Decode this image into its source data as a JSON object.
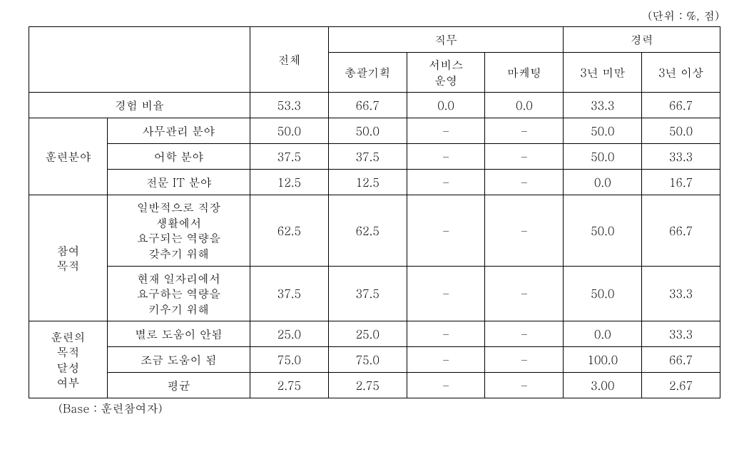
{
  "unit_note": "(단위 : %, 점)",
  "base_note": "(Base : 훈련참여자)",
  "colors": {
    "border": "#000000",
    "text": "#000000",
    "background": "#ffffff"
  },
  "headers": {
    "total": "전체",
    "job_group": "직무",
    "experience_group": "경력",
    "job_sub": [
      "총괄기획",
      "서비스\n운영",
      "마케팅"
    ],
    "exp_sub": [
      "3년 미만",
      "3년 이상"
    ]
  },
  "row_groups": {
    "experience_rate": {
      "label": "경험 비율"
    },
    "training_field": {
      "label": "훈련분야",
      "rows": [
        "사무관리 분야",
        "어학 분야",
        "전문 IT 분야"
      ]
    },
    "purpose": {
      "label": "참여\n목적",
      "rows": [
        "일반적으로 직장\n생활에서\n요구되는 역량을\n갖추기 위해",
        "현재 일자리에서\n요구하는 역량을\n키우기 위해"
      ]
    },
    "achievement": {
      "label": "훈련의\n목적\n달성\n여부",
      "rows": [
        "별로 도움이 안됨",
        "조금 도움이 됨",
        "평균"
      ]
    }
  },
  "cells": {
    "exp_rate": [
      "53.3",
      "66.7",
      "0.0",
      "0.0",
      "33.3",
      "66.7"
    ],
    "tf_office": [
      "50.0",
      "50.0",
      "–",
      "–",
      "50.0",
      "50.0"
    ],
    "tf_lang": [
      "37.5",
      "37.5",
      "–",
      "–",
      "50.0",
      "33.3"
    ],
    "tf_it": [
      "12.5",
      "12.5",
      "–",
      "–",
      "0.0",
      "16.7"
    ],
    "pur_general": [
      "62.5",
      "62.5",
      "–",
      "–",
      "50.0",
      "66.7"
    ],
    "pur_current": [
      "37.5",
      "37.5",
      "–",
      "–",
      "50.0",
      "33.3"
    ],
    "ach_nohelp": [
      "25.0",
      "25.0",
      "–",
      "–",
      "0.0",
      "33.3"
    ],
    "ach_some": [
      "75.0",
      "75.0",
      "–",
      "–",
      "100.0",
      "66.7"
    ],
    "ach_avg": [
      "2.75",
      "2.75",
      "–",
      "–",
      "3.00",
      "2.67"
    ]
  }
}
